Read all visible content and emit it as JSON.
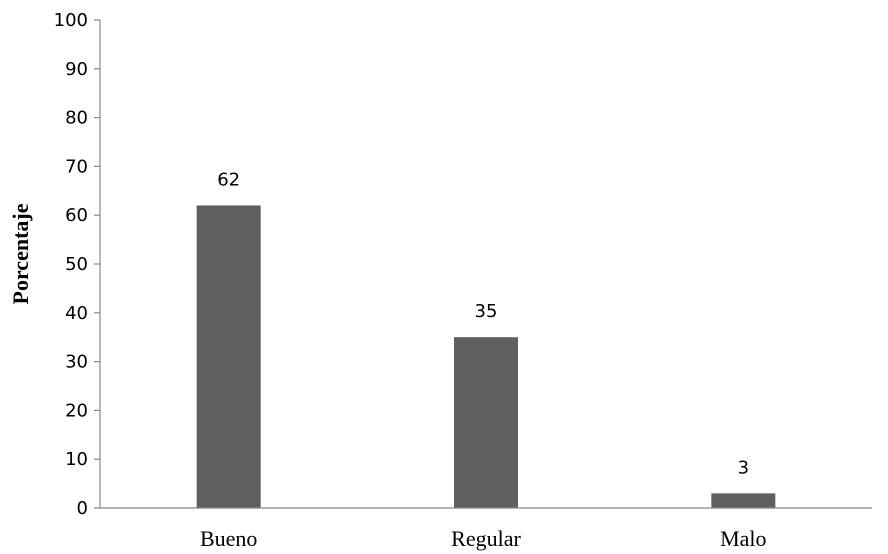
{
  "chart_data": {
    "type": "bar",
    "title": "",
    "xlabel": "",
    "ylabel": "Porcentaje",
    "categories": [
      "Bueno",
      "Regular",
      "Malo"
    ],
    "values": [
      62,
      35,
      3
    ],
    "data_labels": [
      "62",
      "35",
      "3"
    ],
    "ylim": [
      0,
      100
    ],
    "yticks": [
      "0",
      "10",
      "20",
      "30",
      "40",
      "50",
      "60",
      "70",
      "80",
      "90",
      "100"
    ],
    "grid": false,
    "legend": "none",
    "bar_color": "#5f5f5f",
    "axis_color": "#888888"
  }
}
